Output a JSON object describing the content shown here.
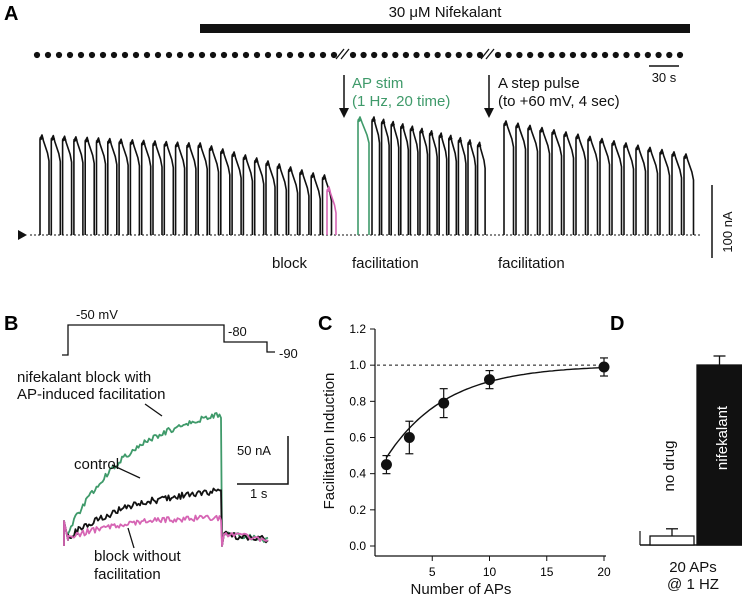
{
  "figure": {
    "panel_labels": [
      "A",
      "B",
      "C",
      "D"
    ],
    "colors": {
      "black": "#111111",
      "green": "#3f9a6a",
      "magenta": "#d665b4"
    }
  },
  "panelA": {
    "drug_label": "30 μM Nifekalant",
    "time_scale": "30 s",
    "ap_stim_line1": "AP stim",
    "ap_stim_line2": "(1 Hz, 20 time)",
    "step_line1": "A step pulse",
    "step_line2": "(to +60 mV, 4 sec)",
    "label_block": "block",
    "label_facilitation_1": "facilitation",
    "label_facilitation_2": "facilitation",
    "current_scale": "100 nA"
  },
  "panelB": {
    "v_hold": "-50 mV",
    "v_tail": "-80",
    "v_end": "-90",
    "label_green_1": "nifekalant block with",
    "label_green_2": "AP-induced facilitation",
    "label_control": "control",
    "label_magenta_1": "block without",
    "label_magenta_2": "facilitation",
    "scale_current": "50 nA",
    "scale_time": "1 s"
  },
  "chart_data": [
    {
      "type": "scatter",
      "panel": "C",
      "xlabel": "Number of APs",
      "ylabel": "Facilitation Induction",
      "xlim": [
        0,
        20
      ],
      "ylim": [
        0,
        1.2
      ],
      "xticks": [
        5,
        10,
        15,
        20
      ],
      "yticks": [
        0.0,
        0.2,
        0.4,
        0.6,
        0.8,
        1.0,
        1.2
      ],
      "reference_line": 1.0,
      "x": [
        1,
        3,
        6,
        10,
        20
      ],
      "y": [
        0.45,
        0.6,
        0.79,
        0.92,
        0.99
      ],
      "error": [
        0.05,
        0.09,
        0.08,
        0.05,
        0.05
      ],
      "fit": "exponential"
    },
    {
      "type": "bar",
      "panel": "D",
      "categories": [
        "no drug",
        "nifekalant"
      ],
      "values": [
        0.05,
        1.0
      ],
      "error": [
        0.04,
        0.05
      ],
      "ylim": [
        0,
        1.2
      ],
      "xlabel_line1": "20 APs",
      "xlabel_line2": "@ 1 HZ"
    }
  ]
}
